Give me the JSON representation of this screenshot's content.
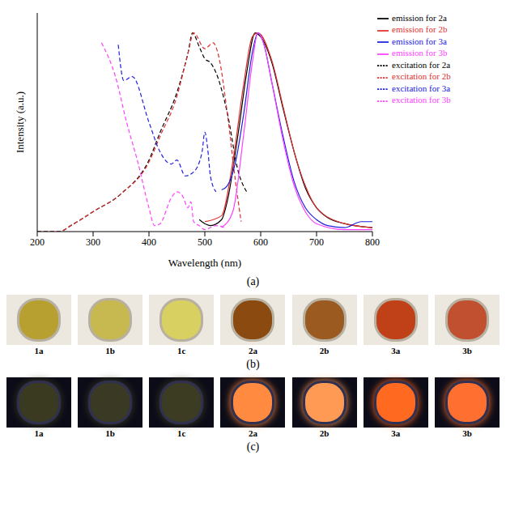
{
  "chart_data": {
    "type": "line",
    "xlabel": "Wavelength (nm)",
    "ylabel": "Intensity (a.u.)",
    "xlim": [
      200,
      800
    ],
    "xticks": [
      200,
      300,
      400,
      500,
      600,
      700,
      800
    ],
    "ylim": [
      0,
      1.1
    ],
    "tick_labels": "x",
    "grid": false,
    "legend": "right",
    "series": [
      {
        "name": "emission for 2a",
        "color": "#000000",
        "line_style": "solid",
        "x": [
          490,
          500,
          510,
          530,
          540,
          560,
          575,
          590,
          600,
          620,
          640,
          660,
          680,
          700,
          720,
          750,
          800
        ],
        "values": [
          0.06,
          0.04,
          0.03,
          0.06,
          0.15,
          0.5,
          0.8,
          1.0,
          0.98,
          0.85,
          0.62,
          0.4,
          0.22,
          0.12,
          0.07,
          0.04,
          0.02
        ]
      },
      {
        "name": "excitation for 2a",
        "color": "#000000",
        "line_style": "dashed",
        "x": [
          200,
          240,
          260,
          300,
          350,
          400,
          420,
          450,
          470,
          478,
          490,
          500,
          510,
          520,
          540,
          560,
          575
        ],
        "values": [
          0,
          0,
          0.03,
          0.1,
          0.19,
          0.36,
          0.5,
          0.7,
          0.9,
          1.0,
          0.93,
          0.87,
          0.85,
          0.8,
          0.6,
          0.3,
          0.2
        ]
      },
      {
        "name": "emission for 2b",
        "color": "#e03030",
        "line_style": "solid",
        "x": [
          500,
          530,
          550,
          570,
          585,
          595,
          620,
          640,
          660,
          680,
          700,
          750,
          800
        ],
        "values": [
          0.05,
          0.08,
          0.35,
          0.75,
          0.98,
          1.0,
          0.86,
          0.63,
          0.4,
          0.23,
          0.12,
          0.04,
          0.02
        ]
      },
      {
        "name": "excitation for 2b",
        "color": "#e03030",
        "line_style": "dashed",
        "x": [
          200,
          240,
          260,
          300,
          350,
          400,
          420,
          450,
          470,
          480,
          500,
          515,
          525,
          540,
          555,
          565
        ],
        "values": [
          0,
          0,
          0.03,
          0.1,
          0.19,
          0.35,
          0.48,
          0.68,
          0.9,
          1.0,
          0.92,
          0.95,
          0.88,
          0.6,
          0.25,
          0.05
        ]
      },
      {
        "name": "emission for 3a",
        "color": "#2020e0",
        "line_style": "solid",
        "x": [
          530,
          540,
          555,
          570,
          585,
          595,
          605,
          620,
          640,
          660,
          680,
          700,
          720,
          750,
          780,
          800
        ],
        "values": [
          0.21,
          0.23,
          0.35,
          0.6,
          0.9,
          1.0,
          0.95,
          0.75,
          0.48,
          0.25,
          0.12,
          0.06,
          0.03,
          0.02,
          0.05,
          0.05
        ]
      },
      {
        "name": "excitation for 3a",
        "color": "#2020e0",
        "line_style": "dashed",
        "x": [
          345,
          355,
          370,
          400,
          420,
          440,
          450,
          465,
          480,
          495,
          500,
          505,
          510,
          520
        ],
        "values": [
          0.94,
          0.76,
          0.78,
          0.55,
          0.4,
          0.34,
          0.36,
          0.28,
          0.3,
          0.4,
          0.5,
          0.42,
          0.28,
          0.2
        ]
      },
      {
        "name": "emission for 3b",
        "color": "#ff40ff",
        "line_style": "solid",
        "x": [
          530,
          550,
          570,
          585,
          595,
          605,
          620,
          640,
          660,
          680,
          700,
          750,
          800
        ],
        "values": [
          0.02,
          0.1,
          0.5,
          0.85,
          1.0,
          0.95,
          0.75,
          0.46,
          0.23,
          0.1,
          0.04,
          0.01,
          0.01
        ]
      },
      {
        "name": "excitation for 3b",
        "color": "#ff40ff",
        "line_style": "dashed",
        "x": [
          315,
          340,
          360,
          380,
          400,
          410,
          420,
          440,
          450,
          460,
          470,
          475,
          480,
          490,
          500,
          520,
          535
        ],
        "values": [
          0.95,
          0.78,
          0.55,
          0.35,
          0.12,
          0.03,
          0.04,
          0.17,
          0.2,
          0.18,
          0.12,
          0.15,
          0.05,
          0.03,
          0.01,
          0.03,
          0.02
        ]
      }
    ]
  },
  "panel_labels": [
    "(a)",
    "(b)",
    "(c)"
  ],
  "photo_rows": [
    {
      "labels": [
        "1a",
        "1b",
        "1c",
        "2a",
        "2b",
        "3a",
        "3b"
      ],
      "colors": [
        "#b8a030",
        "#c8b850",
        "#d8d060",
        "#8a4a10",
        "#9a5a20",
        "#c04018",
        "#c05030"
      ]
    },
    {
      "labels": [
        "1a",
        "1b",
        "1c",
        "2a",
        "2b",
        "3a",
        "3b"
      ],
      "colors": [
        "#3a3a20",
        "#3a3a24",
        "#3c3c22",
        "#ff8a40",
        "#ff9a55",
        "#ff6a20",
        "#ff7030"
      ]
    }
  ]
}
